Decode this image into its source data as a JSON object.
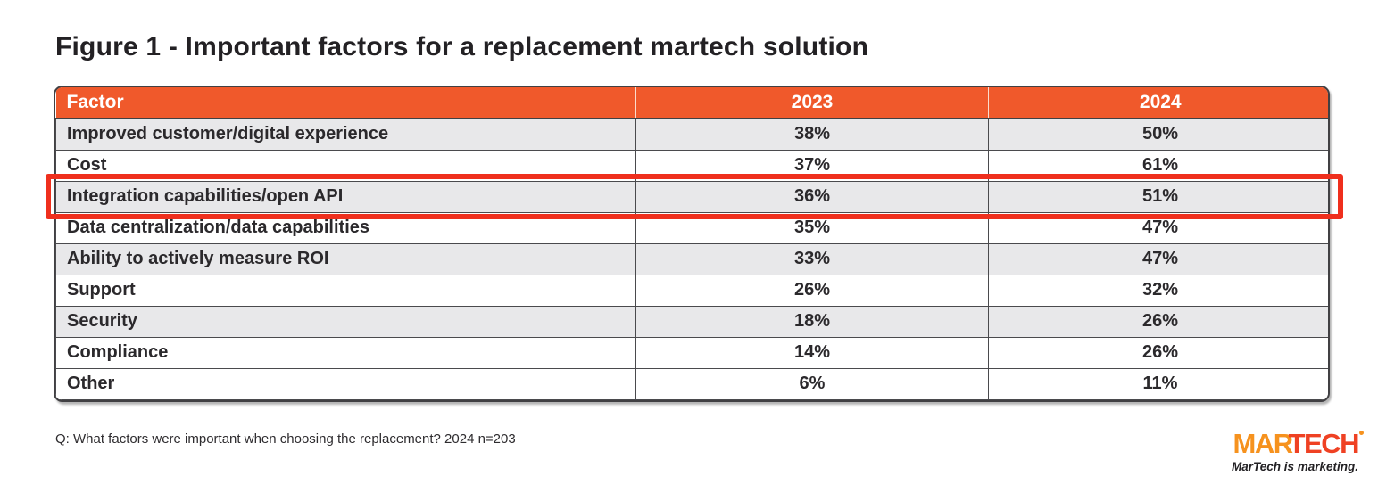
{
  "title": "Figure 1 - Important factors for a replacement martech solution",
  "footnote": "Q: What factors were important when choosing the replacement? 2024 n=203",
  "logo": {
    "part1": "MAR",
    "part2": "TECH",
    "tagline": "MarTech is marketing."
  },
  "colors": {
    "header_bg": "#F0592B",
    "row_alt_bg": "#E8E8EA",
    "cell_border": "#4A4A4D",
    "highlight_border": "#EF2F1D",
    "logo_orange": "#F6921E",
    "logo_red": "#EF4123"
  },
  "chart_data": {
    "type": "table",
    "title": "Figure 1 - Important factors for a replacement martech solution",
    "columns": [
      "Factor",
      "2023",
      "2024"
    ],
    "rows": [
      {
        "factor": "Improved customer/digital experience",
        "v2023": "38%",
        "v2024": "50%",
        "shaded": true
      },
      {
        "factor": "Cost",
        "v2023": "37%",
        "v2024": "61%",
        "shaded": false
      },
      {
        "factor": "Integration capabilities/open API",
        "v2023": "36%",
        "v2024": "51%",
        "shaded": true
      },
      {
        "factor": "Data centralization/data capabilities",
        "v2023": "35%",
        "v2024": "47%",
        "shaded": false
      },
      {
        "factor": "Ability to actively measure ROI",
        "v2023": "33%",
        "v2024": "47%",
        "shaded": true
      },
      {
        "factor": "Support",
        "v2023": "26%",
        "v2024": "32%",
        "shaded": false
      },
      {
        "factor": "Security",
        "v2023": "18%",
        "v2024": "26%",
        "shaded": true
      },
      {
        "factor": "Compliance",
        "v2023": "14%",
        "v2024": "26%",
        "shaded": false
      },
      {
        "factor": "Other",
        "v2023": "6%",
        "v2024": "11%",
        "shaded": false
      }
    ],
    "highlight_index": 2,
    "highlighted_row": "Integration capabilities/open API"
  }
}
